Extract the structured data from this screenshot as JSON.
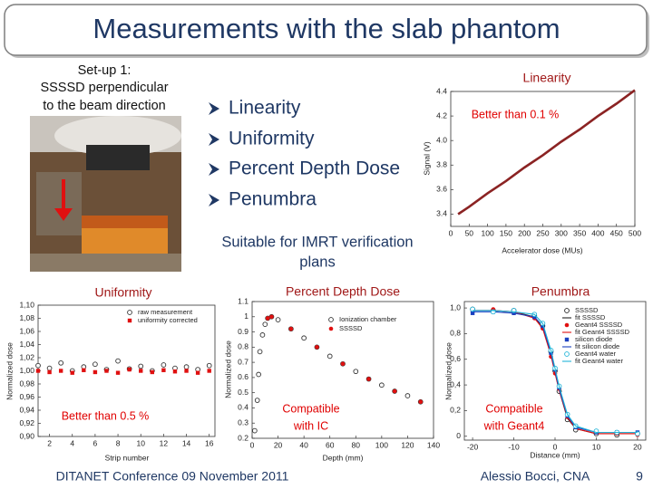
{
  "header": {
    "title": "Measurements with the slab phantom"
  },
  "setup": [
    "Set-up 1:",
    "SSSSD perpendicular",
    "to the beam direction"
  ],
  "bullets": [
    "Linearity",
    "Uniformity",
    "Percent Depth Dose",
    "Penumbra"
  ],
  "note": [
    "Suitable for IMRT verification",
    "plans"
  ],
  "footer": {
    "left": "DITANET Conference 09 November 2011",
    "right": "Alessio Bocci, CNA",
    "page": 9
  },
  "chart_data": [
    {
      "type": "line",
      "title": "Linearity",
      "annotations": [
        "Better than 0.1 %"
      ],
      "x_label": "Accelerator dose (MUs)",
      "y_label": "Signal (V)",
      "xlim": [
        0,
        500
      ],
      "ylim": [
        3.3,
        4.4
      ],
      "xticks": [
        0,
        50,
        100,
        150,
        200,
        250,
        300,
        350,
        400,
        450,
        500
      ],
      "yticks": [
        3.4,
        3.6,
        3.8,
        {
          "value": 4,
          "label": "4.0"
        },
        4.2,
        4.4
      ],
      "series": [
        {
          "color": "#8b2323",
          "line": true,
          "marker": "none",
          "x": [
            20,
            50,
            100,
            150,
            200,
            250,
            300,
            350,
            400,
            450,
            500
          ],
          "values": [
            3.4,
            3.46,
            3.57,
            3.67,
            3.78,
            3.88,
            3.99,
            4.09,
            4.2,
            4.3,
            4.41
          ]
        }
      ]
    },
    {
      "type": "scatter",
      "title": "Uniformity",
      "annotations": [
        "Better than 0.5 %"
      ],
      "x_label": "Strip number",
      "y_label": "Normalized dose",
      "xlim": [
        1,
        16.5
      ],
      "ylim": [
        0.9,
        1.1
      ],
      "xticks": [
        2,
        4,
        6,
        8,
        10,
        12,
        14,
        16
      ],
      "yticks": [
        {
          "value": 0.9,
          "label": "0,90"
        },
        {
          "value": 0.92,
          "label": "0,92"
        },
        {
          "value": 0.94,
          "label": "0,94"
        },
        {
          "value": 0.96,
          "label": "0,96"
        },
        {
          "value": 0.98,
          "label": "0,98"
        },
        {
          "value": 1,
          "label": "1,00"
        },
        {
          "value": 1.02,
          "label": "1,02"
        },
        {
          "value": 1.04,
          "label": "1,04"
        },
        {
          "value": 1.06,
          "label": "1,06"
        },
        {
          "value": 1.08,
          "label": "1,08"
        },
        {
          "value": 1.1,
          "label": "1,10"
        }
      ],
      "series": [
        {
          "name": "raw measurement",
          "color": "#333333",
          "line": false,
          "marker": "circle-open",
          "x": [
            1,
            2,
            3,
            4,
            5,
            6,
            7,
            8,
            9,
            10,
            11,
            12,
            13,
            14,
            15,
            16
          ],
          "values": [
            1.008,
            1.004,
            1.012,
            1.0,
            1.006,
            1.01,
            1.002,
            1.015,
            1.003,
            1.007,
            1.0,
            1.009,
            1.004,
            1.006,
            1.002,
            1.008
          ]
        },
        {
          "name": "uniformity corrected",
          "color": "#e01010",
          "line": false,
          "marker": "square",
          "x": [
            1,
            2,
            3,
            4,
            5,
            6,
            7,
            8,
            9,
            10,
            11,
            12,
            13,
            14,
            15,
            16
          ],
          "values": [
            1.0,
            0.998,
            1.0,
            0.997,
            1.001,
            0.998,
            1.0,
            0.997,
            1.002,
            1.0,
            0.998,
            1.001,
            0.999,
            1.0,
            0.997,
            1.0
          ]
        }
      ]
    },
    {
      "type": "scatter",
      "title": "Percent Depth Dose",
      "annotations": [
        "Compatible",
        "with IC"
      ],
      "x_label": "Depth (mm)",
      "y_label": "Normalized dose",
      "xlim": [
        0,
        140
      ],
      "ylim": [
        0.2,
        1.1
      ],
      "xticks": [
        0,
        20,
        40,
        60,
        80,
        100,
        120,
        140
      ],
      "yticks": [
        0.2,
        0.3,
        0.4,
        0.5,
        0.6,
        0.7,
        0.8,
        0.9,
        1,
        1.1
      ],
      "series": [
        {
          "name": "Ionization chamber",
          "color": "#333333",
          "line": false,
          "marker": "circle-open",
          "x": [
            2,
            4,
            5,
            6,
            8,
            10,
            12,
            15,
            20,
            30,
            40,
            50,
            60,
            70,
            80,
            90,
            100,
            110,
            120,
            130
          ],
          "values": [
            0.25,
            0.45,
            0.62,
            0.77,
            0.88,
            0.95,
            0.99,
            1.0,
            0.98,
            0.92,
            0.86,
            0.8,
            0.74,
            0.69,
            0.64,
            0.59,
            0.55,
            0.51,
            0.48,
            0.44
          ]
        },
        {
          "name": "SSSSD",
          "color": "#e01010",
          "line": false,
          "marker": "circle",
          "x": [
            12,
            15,
            30,
            50,
            70,
            90,
            110,
            130
          ],
          "values": [
            0.99,
            1.0,
            0.92,
            0.8,
            0.69,
            0.59,
            0.51,
            0.44
          ]
        }
      ]
    },
    {
      "type": "line",
      "title": "Penumbra",
      "annotations": [
        "Compatible",
        "with Geant4"
      ],
      "x_label": "Distance (mm)",
      "y_label": "Normalized dose",
      "xlim": [
        -22,
        22
      ],
      "ylim": [
        -0.03,
        1.05
      ],
      "xticks": [
        -20,
        -10,
        0,
        10,
        20
      ],
      "yticks": [
        0,
        {
          "value": 0.2,
          "label": "0,2"
        },
        {
          "value": 0.4,
          "label": "0,4"
        },
        {
          "value": 0.6,
          "label": "0,6"
        },
        {
          "value": 0.8,
          "label": "0,8"
        },
        {
          "value": 1,
          "label": "1,0"
        }
      ],
      "series": [
        {
          "name": "SSSSD",
          "color": "#222222",
          "line": false,
          "marker": "circle-open",
          "x": [
            -20,
            -15,
            -10,
            -5,
            -3,
            -1,
            0,
            1,
            3,
            5,
            10,
            15,
            20
          ],
          "values": [
            0.99,
            0.98,
            0.98,
            0.94,
            0.86,
            0.66,
            0.51,
            0.35,
            0.13,
            0.05,
            0.02,
            0.01,
            0.02
          ]
        },
        {
          "name": "fit SSSSD",
          "color": "#222222",
          "line": true,
          "marker": "none",
          "x": [
            -20,
            -15,
            -10,
            -5,
            -3,
            -1,
            0,
            1,
            3,
            5,
            10,
            15,
            20
          ],
          "values": [
            0.98,
            0.98,
            0.97,
            0.93,
            0.85,
            0.64,
            0.5,
            0.36,
            0.14,
            0.06,
            0.02,
            0.02,
            0.02
          ]
        },
        {
          "name": "Geant4 SSSSD",
          "color": "#e01010",
          "line": false,
          "marker": "circle",
          "x": [
            -20,
            -15,
            -10,
            -5,
            -3,
            -1,
            0,
            1,
            3,
            5,
            10,
            15,
            20
          ],
          "values": [
            0.97,
            0.99,
            0.96,
            0.92,
            0.84,
            0.62,
            0.49,
            0.37,
            0.15,
            0.07,
            0.03,
            0.02,
            0.01
          ]
        },
        {
          "name": "fit Geant4 SSSSD",
          "color": "#e01010",
          "line": true,
          "marker": "none",
          "x": [
            -20,
            -15,
            -10,
            -5,
            -3,
            -1,
            0,
            1,
            3,
            5,
            10,
            15,
            20
          ],
          "values": [
            0.98,
            0.98,
            0.97,
            0.92,
            0.84,
            0.63,
            0.49,
            0.36,
            0.15,
            0.06,
            0.02,
            0.02,
            0.02
          ]
        },
        {
          "name": "silicon diode",
          "color": "#1a3fc0",
          "line": false,
          "marker": "square",
          "x": [
            -20,
            -15,
            -10,
            -5,
            -3,
            -1,
            0,
            1,
            3,
            5,
            10,
            15,
            20
          ],
          "values": [
            0.96,
            0.97,
            0.96,
            0.93,
            0.86,
            0.65,
            0.52,
            0.38,
            0.16,
            0.07,
            0.03,
            0.03,
            0.03
          ]
        },
        {
          "name": "fit silicon diode",
          "color": "#1a3fc0",
          "line": true,
          "marker": "none",
          "x": [
            -20,
            -15,
            -10,
            -5,
            -3,
            -1,
            0,
            1,
            3,
            5,
            10,
            15,
            20
          ],
          "values": [
            0.97,
            0.97,
            0.96,
            0.93,
            0.86,
            0.65,
            0.51,
            0.37,
            0.16,
            0.07,
            0.03,
            0.03,
            0.03
          ]
        },
        {
          "name": "Geant4 water",
          "color": "#22b5d8",
          "line": false,
          "marker": "circle-open",
          "x": [
            -20,
            -15,
            -10,
            -5,
            -3,
            -1,
            0,
            1,
            3,
            5,
            10,
            15,
            20
          ],
          "values": [
            0.99,
            0.97,
            0.98,
            0.95,
            0.88,
            0.67,
            0.53,
            0.39,
            0.17,
            0.08,
            0.04,
            0.03,
            0.02
          ]
        },
        {
          "name": "fit Geant4 water",
          "color": "#22b5d8",
          "line": true,
          "marker": "none",
          "x": [
            -20,
            -15,
            -10,
            -5,
            -3,
            -1,
            0,
            1,
            3,
            5,
            10,
            15,
            20
          ],
          "values": [
            0.98,
            0.98,
            0.97,
            0.95,
            0.88,
            0.67,
            0.53,
            0.39,
            0.17,
            0.08,
            0.03,
            0.03,
            0.03
          ]
        }
      ]
    }
  ]
}
